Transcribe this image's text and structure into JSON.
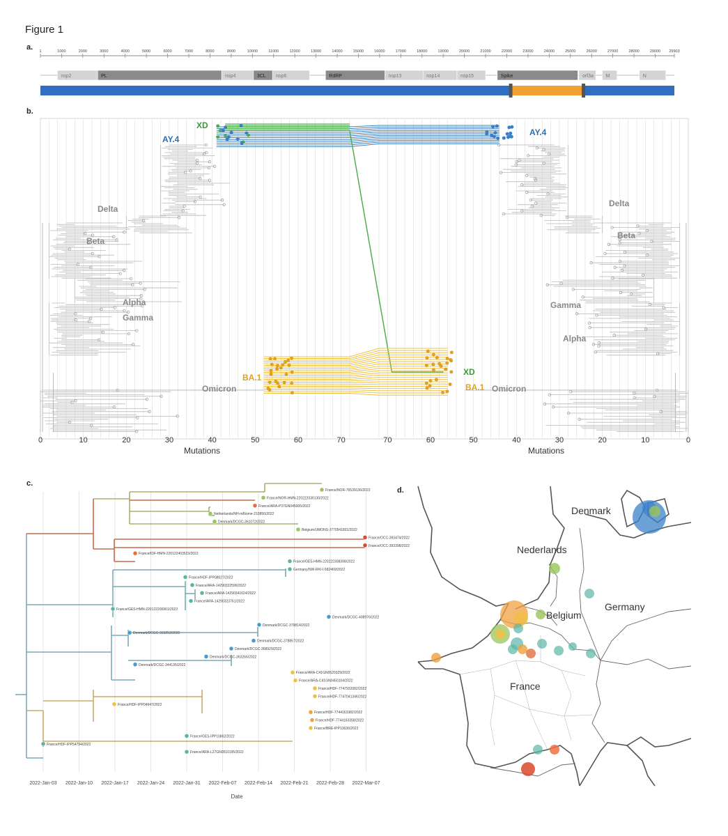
{
  "figure_title": "Figure 1",
  "panels": {
    "a": {
      "label": "a.",
      "ruler_ticks": [
        "1",
        "1000",
        "2000",
        "3000",
        "4000",
        "5000",
        "6000",
        "7000",
        "8000",
        "9000",
        "10000",
        "11000",
        "12000",
        "13000",
        "14000",
        "15000",
        "16000",
        "17000",
        "18000",
        "19000",
        "20000",
        "21000",
        "22000",
        "23000",
        "24000",
        "25000",
        "26000",
        "27000",
        "28000",
        "29000",
        "29903"
      ],
      "genome_length": 29903,
      "genes": [
        {
          "name": "nsp2",
          "start": 800,
          "end": 2700,
          "style": "light"
        },
        {
          "name": "PL",
          "start": 2700,
          "end": 8550,
          "style": "dark"
        },
        {
          "name": "nsp4",
          "start": 8550,
          "end": 10050,
          "style": "light"
        },
        {
          "name": "3CL",
          "start": 10050,
          "end": 10950,
          "style": "dark"
        },
        {
          "name": "nsp6",
          "start": 10950,
          "end": 12700,
          "style": "light"
        },
        {
          "name": "RdRP",
          "start": 13450,
          "end": 16250,
          "style": "dark"
        },
        {
          "name": "nsp13",
          "start": 16250,
          "end": 18050,
          "style": "light"
        },
        {
          "name": "nsp14",
          "start": 18050,
          "end": 19650,
          "style": "light"
        },
        {
          "name": "nsp15",
          "start": 19650,
          "end": 21000,
          "style": "light"
        },
        {
          "name": "Spike",
          "start": 21550,
          "end": 25350,
          "style": "dark"
        },
        {
          "name": "orf3a",
          "start": 25400,
          "end": 26200,
          "style": "light"
        },
        {
          "name": "M",
          "start": 26500,
          "end": 27200,
          "style": "light"
        },
        {
          "name": "N",
          "start": 28250,
          "end": 29500,
          "style": "light"
        }
      ],
      "recombination": {
        "background_color": "#2f6ec0",
        "insert_color": "#f0a030",
        "insert_start": 22200,
        "insert_end": 25600
      }
    },
    "b": {
      "label": "b.",
      "axis_title_left": "Mutations",
      "axis_title_right": "Mutations",
      "left_ticks": [
        "0",
        "10",
        "20",
        "30",
        "40",
        "50",
        "60",
        "70"
      ],
      "right_ticks": [
        "70",
        "60",
        "50",
        "40",
        "30",
        "20",
        "10",
        "0"
      ],
      "clades_left": [
        {
          "name": "XD",
          "color": "#3a9a3a"
        },
        {
          "name": "AY.4",
          "color": "#2c6fb0"
        },
        {
          "name": "Delta",
          "color": "#888888"
        },
        {
          "name": "Beta",
          "color": "#888888"
        },
        {
          "name": "Alpha",
          "color": "#888888"
        },
        {
          "name": "Gamma",
          "color": "#888888"
        },
        {
          "name": "BA.1",
          "color": "#e0a020"
        },
        {
          "name": "Omicron",
          "color": "#888888"
        }
      ],
      "clades_right": [
        {
          "name": "AY.4",
          "color": "#2c6fb0"
        },
        {
          "name": "Delta",
          "color": "#888888"
        },
        {
          "name": "Beta",
          "color": "#888888"
        },
        {
          "name": "Gamma",
          "color": "#888888"
        },
        {
          "name": "Alpha",
          "color": "#888888"
        },
        {
          "name": "XD",
          "color": "#3a9a3a"
        },
        {
          "name": "BA.1",
          "color": "#e0a020"
        },
        {
          "name": "Omicron",
          "color": "#888888"
        }
      ],
      "colors": {
        "xd": "#4fae4f",
        "ay4": "#3b7fc4",
        "ba1": "#f2c040",
        "tree": "#b8b8b8",
        "grid": "#dddddd"
      }
    },
    "c": {
      "label": "c.",
      "axis_title": "Date",
      "dates": [
        "2022-Jan-03",
        "2022-Jan-10",
        "2022-Jan-17",
        "2022-Jan-24",
        "2022-Jan-31",
        "2022-Feb-07",
        "2022-Feb-14",
        "2022-Feb-21",
        "2022-Feb-28",
        "2022-Mar-07"
      ],
      "tips": [
        {
          "label": "France/NOR-76539136/2022",
          "color": "#9bc45a"
        },
        {
          "label": "France/NOR-HMN-220222030130/2022",
          "color": "#9bc45a"
        },
        {
          "label": "France/ARA-P37GN045005/2022",
          "color": "#e07040"
        },
        {
          "label": "Netherlands/NH-mBiome-210856/2022",
          "color": "#9bc45a"
        },
        {
          "label": "Denmark/DCGC-361072/2022",
          "color": "#9bc45a"
        },
        {
          "label": "Belgium/UMONS-J770541801/2022",
          "color": "#9bc45a"
        },
        {
          "label": "France/OCC-393474/2022",
          "color": "#d9492b"
        },
        {
          "label": "France/OCC-393398/2022",
          "color": "#d9492b"
        },
        {
          "label": "France/IDF-HMN-220122403523/2022",
          "color": "#e07040"
        },
        {
          "label": "France/GES-HMN-220222308398/2022",
          "color": "#5ab5a5"
        },
        {
          "label": "Germany/NW-RKI-I-582469/2022",
          "color": "#5ab5a5"
        },
        {
          "label": "France/HDF-IPP08027/2022",
          "color": "#5ab5a5"
        },
        {
          "label": "France/ARA-14290322596/2022",
          "color": "#5ab5a5"
        },
        {
          "label": "France/ARA-14290341624/2022",
          "color": "#5ab5a5"
        },
        {
          "label": "France/ARA-14290323761/2022",
          "color": "#5ab5a5"
        },
        {
          "label": "France/GES-HMN-220122200901/2022",
          "color": "#5ab5a5"
        },
        {
          "label": "Denmark/DCGC-408976/2022",
          "color": "#4a9acb"
        },
        {
          "label": "Denmark/DCGC-379814/2022",
          "color": "#4a9acb"
        },
        {
          "label": "Denmark/DCGC-333253/2022",
          "color": "#4a9acb"
        },
        {
          "label": "Denmark/DCGC-378857/2022",
          "color": "#4a9acb"
        },
        {
          "label": "Denmark/DCGC-368929/2022",
          "color": "#4a9acb"
        },
        {
          "label": "Denmark/DCGC-363266/2022",
          "color": "#4a9acb"
        },
        {
          "label": "Denmark/DCGC-344135/2022",
          "color": "#4a9acb"
        },
        {
          "label": "France/ARA-C41GN0520329/2022",
          "color": "#f0c040"
        },
        {
          "label": "France/ARA-C41GN0450104/2022",
          "color": "#f0c040"
        },
        {
          "label": "France/HDF-7747932082/2022",
          "color": "#f0c040"
        },
        {
          "label": "France/HDF-7747041346/2022",
          "color": "#f0c040"
        },
        {
          "label": "France/HDF-IPP04947/2022",
          "color": "#f0c040"
        },
        {
          "label": "France/HDF-7744163382/2022",
          "color": "#f0a040"
        },
        {
          "label": "France/HDF-7744163358/2022",
          "color": "#f0a040"
        },
        {
          "label": "France/BRE-IPP13636/2022",
          "color": "#f0c040"
        },
        {
          "label": "France/GES-IPP10862/2022",
          "color": "#5ab5a5"
        },
        {
          "label": "France/HDF-IPP54794/2022",
          "color": "#5ab5a5"
        },
        {
          "label": "France/ARA-L27GN0510195/2022",
          "color": "#5ab5a5"
        }
      ]
    },
    "d": {
      "label": "d.",
      "places": [
        "Denmark",
        "Nederlands",
        "Belgium",
        "Germany",
        "France"
      ]
    }
  }
}
